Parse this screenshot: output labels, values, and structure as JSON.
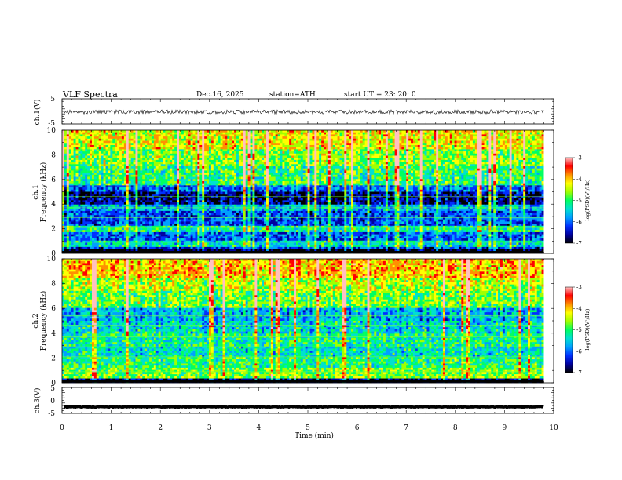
{
  "header": {
    "title": "VLF  Spectra",
    "date": "Dec.16, 2025",
    "station": "station=ATH",
    "start": "start  UT  =   23: 20: 0"
  },
  "colorbar": {
    "label": "log(PSD)(V²/Hz)",
    "ticks": [
      "-3",
      "-4",
      "-5",
      "-6",
      "-7"
    ],
    "range": [
      -7,
      -3
    ],
    "colors": [
      "#000000",
      "#0000a0",
      "#0030ff",
      "#00a0ff",
      "#00e0d0",
      "#00ff60",
      "#a0ff00",
      "#ffff00",
      "#ff9000",
      "#ff0000",
      "#ffc0c0"
    ]
  },
  "chart_data": [
    {
      "type": "line",
      "name": "ch1-waveform",
      "ylabel": "ch.1(V)",
      "ylim": [
        -5,
        5
      ],
      "yticks": [
        "5",
        "-5"
      ],
      "xlim": [
        0,
        10
      ],
      "level": -0.2,
      "amplitude": 0.8
    },
    {
      "type": "heatmap",
      "name": "ch1-spectrogram",
      "ylabel": "ch.1\nFrequency (kHz)",
      "ylim": [
        0,
        10
      ],
      "yticks": [
        "10",
        "8",
        "6",
        "4",
        "2",
        "0"
      ],
      "xlim": [
        0,
        9.8
      ],
      "bands": [
        {
          "from": 0,
          "to": 0.3,
          "value": -7
        },
        {
          "from": 0.3,
          "to": 0.5,
          "value": -6.2
        },
        {
          "from": 0.5,
          "to": 1.0,
          "value": -5.4
        },
        {
          "from": 1.0,
          "to": 1.8,
          "value": -6.0
        },
        {
          "from": 1.8,
          "to": 2.3,
          "value": -5.2
        },
        {
          "from": 2.3,
          "to": 3.5,
          "value": -6.1
        },
        {
          "from": 3.5,
          "to": 3.9,
          "value": -5.6
        },
        {
          "from": 3.9,
          "to": 5.0,
          "value": -6.6
        },
        {
          "from": 5.0,
          "to": 5.6,
          "value": -6.0
        },
        {
          "from": 5.6,
          "to": 7.0,
          "value": -5.1
        },
        {
          "from": 7.0,
          "to": 8.5,
          "value": -4.8
        },
        {
          "from": 8.5,
          "to": 10.0,
          "value": -4.4
        }
      ]
    },
    {
      "type": "heatmap",
      "name": "ch2-spectrogram",
      "ylabel": "ch.2\nFrequency (kHz)",
      "ylim": [
        0,
        10
      ],
      "yticks": [
        "10",
        "8",
        "6",
        "4",
        "2",
        "0"
      ],
      "xlim": [
        0,
        9.8
      ],
      "bands": [
        {
          "from": 0,
          "to": 0.4,
          "value": -6.8
        },
        {
          "from": 0.4,
          "to": 1.2,
          "value": -5.0
        },
        {
          "from": 1.2,
          "to": 2.0,
          "value": -5.3
        },
        {
          "from": 2.0,
          "to": 3.0,
          "value": -5.6
        },
        {
          "from": 3.0,
          "to": 4.0,
          "value": -5.4
        },
        {
          "from": 4.0,
          "to": 5.0,
          "value": -5.7
        },
        {
          "from": 5.0,
          "to": 6.0,
          "value": -5.9
        },
        {
          "from": 6.0,
          "to": 7.5,
          "value": -5.1
        },
        {
          "from": 7.5,
          "to": 8.5,
          "value": -4.8
        },
        {
          "from": 8.5,
          "to": 10.0,
          "value": -4.4
        }
      ]
    },
    {
      "type": "line",
      "name": "ch3-waveform",
      "ylabel": "ch.3(V)",
      "ylim": [
        -5,
        5
      ],
      "yticks": [
        "5",
        "0",
        "-5"
      ],
      "xlim": [
        0,
        10
      ],
      "level": -2.5,
      "amplitude": 0.15
    }
  ],
  "xaxis": {
    "label": "Time (min)",
    "ticks": [
      "0",
      "1",
      "2",
      "3",
      "4",
      "5",
      "6",
      "7",
      "8",
      "9",
      "10"
    ],
    "xlim": [
      0,
      10
    ]
  }
}
